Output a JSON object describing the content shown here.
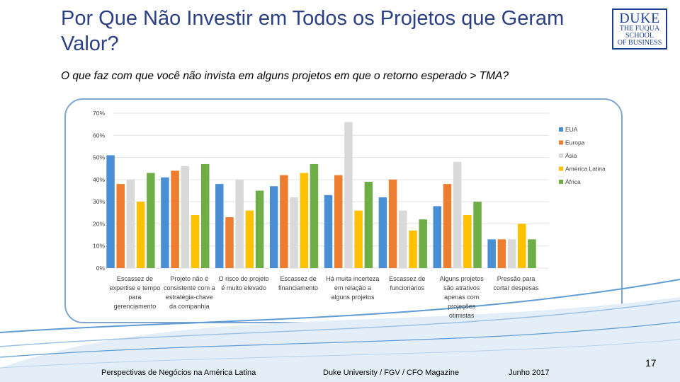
{
  "slide": {
    "title": "Por Que Não Investir em Todos os Projetos que Geram Valor?",
    "subtitle": "O que faz com que você não invista em alguns projetos em que o retorno esperado > TMA?",
    "logo": {
      "line1": "DUKE",
      "line2": "THE FUQUA",
      "line3": "SCHOOL",
      "line4": "OF BUSINESS"
    },
    "footer_left": "Perspectivas de Negócios na América Latina",
    "footer_center": "Duke University / FGV / CFO Magazine",
    "footer_right": "Junho 2017",
    "page_number": "17",
    "colors": {
      "title": "#2b3f86",
      "frame": "#7ea6d3",
      "wave": "#5d9cd6"
    }
  },
  "chart_data": {
    "type": "bar",
    "ylim": [
      0,
      70
    ],
    "yticks": [
      0,
      10,
      20,
      30,
      40,
      50,
      60,
      70
    ],
    "ytick_labels": [
      "0%",
      "10%",
      "20%",
      "30%",
      "40%",
      "50%",
      "60%",
      "70%"
    ],
    "grid": true,
    "legend_position": "right",
    "categories": [
      [
        "Escassez de",
        "expertise e tempo",
        "para",
        "gerenciamento"
      ],
      [
        "Projeto não é",
        "consistente com a",
        "estratégia-chave",
        "da companhia"
      ],
      [
        "O risco do projeto",
        "é muito elevado"
      ],
      [
        "Escassez de",
        "financiamento"
      ],
      [
        "Há muita incerteza",
        "em relação a",
        "alguns projetos"
      ],
      [
        "Escassez de",
        "funcionários"
      ],
      [
        "Alguns projetos",
        "são atrativos",
        "apenas com",
        "projeções",
        "otimistas"
      ],
      [
        "Pressão para",
        "cortar despesas"
      ]
    ],
    "series": [
      {
        "name": "EUA",
        "color": "#4a8fd3",
        "values": [
          51,
          41,
          38,
          37,
          33,
          32,
          28,
          13
        ]
      },
      {
        "name": "Europa",
        "color": "#ec7d31",
        "values": [
          38,
          44,
          23,
          42,
          42,
          40,
          38,
          13
        ]
      },
      {
        "name": "Ásia",
        "color": "#d9d9d9",
        "values": [
          40,
          46,
          40,
          32,
          66,
          26,
          48,
          13
        ]
      },
      {
        "name": "América Latina",
        "color": "#ffc000",
        "values": [
          30,
          24,
          26,
          43,
          26,
          17,
          24,
          20
        ]
      },
      {
        "name": "África",
        "color": "#6fad46",
        "values": [
          43,
          47,
          35,
          47,
          39,
          22,
          30,
          13
        ]
      }
    ]
  }
}
